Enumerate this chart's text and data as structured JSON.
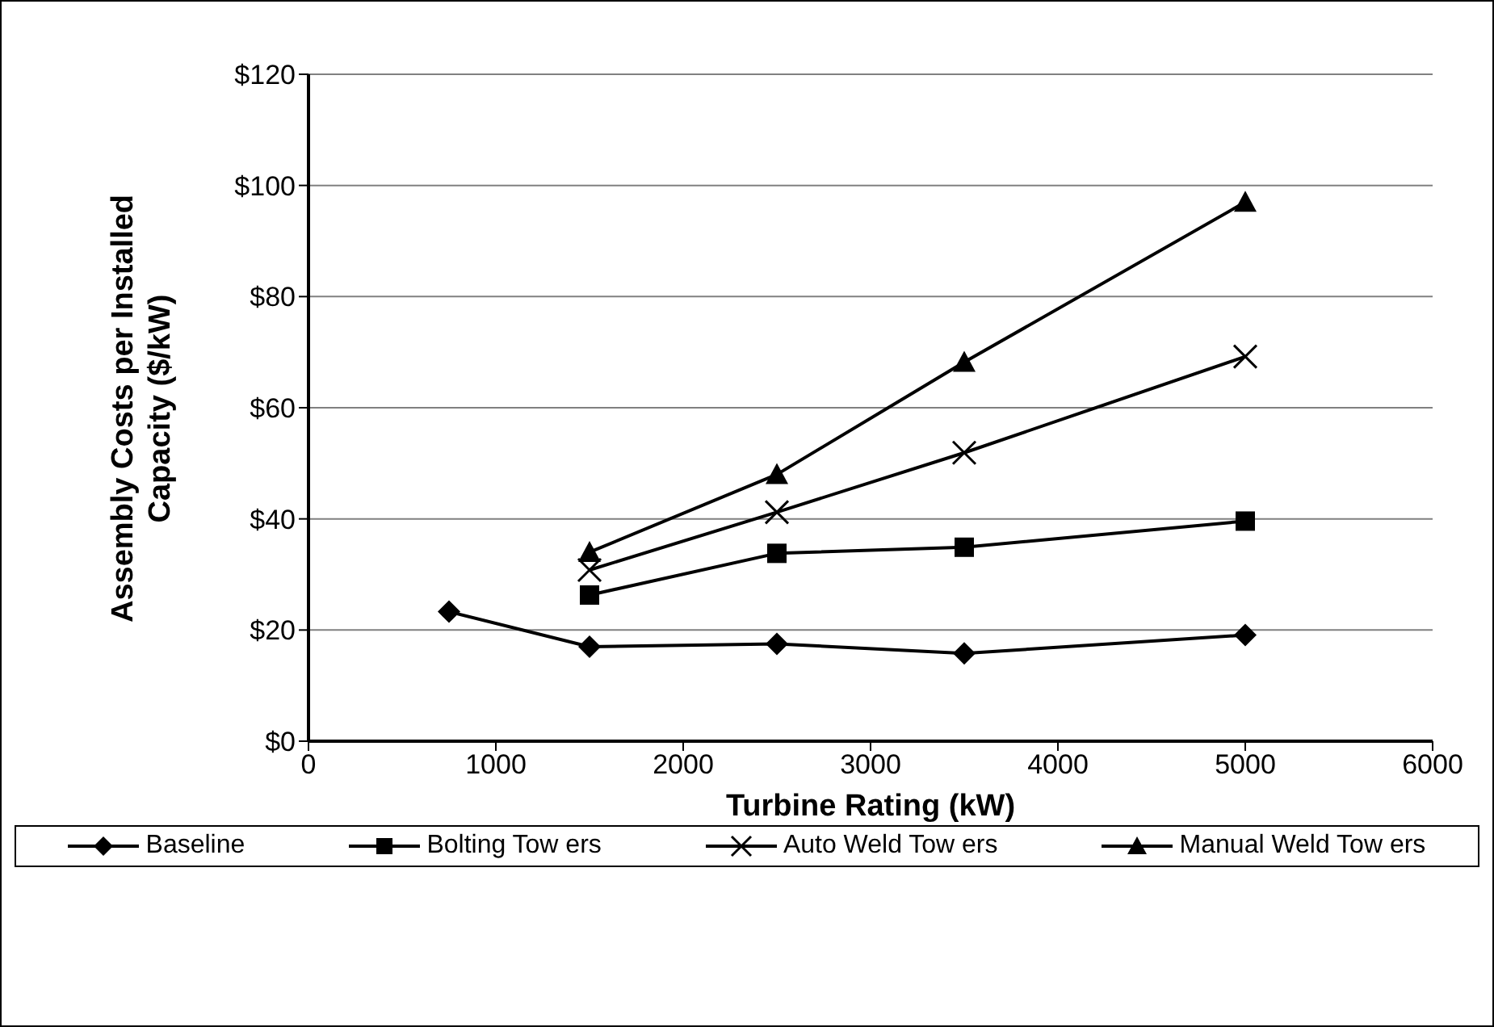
{
  "chart_data": {
    "type": "line",
    "xlabel": "Turbine Rating (kW)",
    "ylabel": "Assembly Costs per Installed Capacity ($/kW)",
    "xlim": [
      0,
      6000
    ],
    "xticks": [
      0,
      1000,
      2000,
      3000,
      4000,
      5000,
      6000
    ],
    "ylim": [
      0,
      120
    ],
    "yticks": [
      {
        "value": 0,
        "label": "$0"
      },
      {
        "value": 20,
        "label": "$20"
      },
      {
        "value": 40,
        "label": "$40"
      },
      {
        "value": 60,
        "label": "$60"
      },
      {
        "value": 80,
        "label": "$80"
      },
      {
        "value": 100,
        "label": "$100"
      },
      {
        "value": 120,
        "label": "$120"
      }
    ],
    "grid": "y",
    "legend": "bottom",
    "series": [
      {
        "name": "Baseline",
        "color": "#000000",
        "marker": "diamond",
        "x": [
          750,
          1500,
          2500,
          3500,
          5000
        ],
        "values": [
          23.3,
          17.0,
          17.5,
          15.8,
          19.1
        ]
      },
      {
        "name": "Bolting Tow ers",
        "color": "#000000",
        "marker": "square",
        "x": [
          1500,
          2500,
          3500,
          5000
        ],
        "values": [
          26.3,
          33.8,
          34.9,
          39.6
        ]
      },
      {
        "name": "Auto Weld Tow ers",
        "color": "#000000",
        "marker": "cross",
        "x": [
          1500,
          2500,
          3500,
          5000
        ],
        "values": [
          30.8,
          41.2,
          51.9,
          69.2
        ]
      },
      {
        "name": "Manual Weld Tow ers",
        "color": "#000000",
        "marker": "triangle",
        "x": [
          1500,
          2500,
          3500,
          5000
        ],
        "values": [
          34.0,
          48.0,
          68.2,
          97.0
        ]
      }
    ]
  }
}
